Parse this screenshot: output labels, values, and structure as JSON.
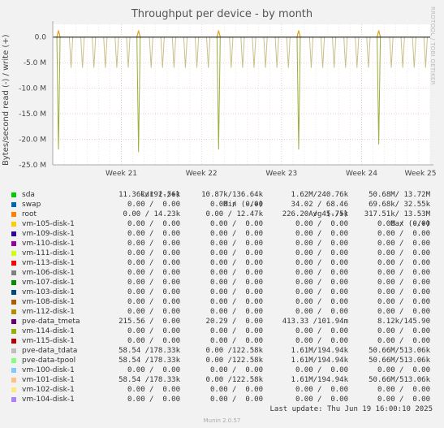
{
  "title": "Throughput per device - by month",
  "watermark": "RRDTOOL / TOBI OETIKER",
  "y_axis_label": "Bytes/second read (-) / write (+)",
  "legend_headers": {
    "cur": "Cur (-/+)",
    "min": "Min (-/+)",
    "avg": "Avg (-/+)",
    "max": "Max (-/+)"
  },
  "legend": [
    {
      "name": "sda",
      "color": "#00cc00",
      "cur": "11.36k/192.56k",
      "min": "10.87k/136.64k",
      "avg": "1.62M/240.76k",
      "max": "50.68M/ 13.72M"
    },
    {
      "name": "swap",
      "color": "#0066b3",
      "cur": "0.00 /  0.00",
      "min": "0.00 /  0.00",
      "avg": "34.02 / 68.46",
      "max": "69.68k/ 32.55k"
    },
    {
      "name": "root",
      "color": "#ff8000",
      "cur": "0.00 / 14.23k",
      "min": "0.00 / 12.47k",
      "avg": "226.20 / 45.75k",
      "max": "317.51k/ 13.53M"
    },
    {
      "name": "vm-105-disk-1",
      "color": "#ffcc00",
      "cur": "0.00 /  0.00",
      "min": "0.00 /  0.00",
      "avg": "0.00 /  0.00",
      "max": "0.00 /  0.00"
    },
    {
      "name": "vm-109-disk-1",
      "color": "#330099",
      "cur": "0.00 /  0.00",
      "min": "0.00 /  0.00",
      "avg": "0.00 /  0.00",
      "max": "0.00 /  0.00"
    },
    {
      "name": "vm-110-disk-1",
      "color": "#990099",
      "cur": "0.00 /  0.00",
      "min": "0.00 /  0.00",
      "avg": "0.00 /  0.00",
      "max": "0.00 /  0.00"
    },
    {
      "name": "vm-111-disk-1",
      "color": "#ccff00",
      "cur": "0.00 /  0.00",
      "min": "0.00 /  0.00",
      "avg": "0.00 /  0.00",
      "max": "0.00 /  0.00"
    },
    {
      "name": "vm-113-disk-1",
      "color": "#ff0000",
      "cur": "0.00 /  0.00",
      "min": "0.00 /  0.00",
      "avg": "0.00 /  0.00",
      "max": "0.00 /  0.00"
    },
    {
      "name": "vm-106-disk-1",
      "color": "#808080",
      "cur": "0.00 /  0.00",
      "min": "0.00 /  0.00",
      "avg": "0.00 /  0.00",
      "max": "0.00 /  0.00"
    },
    {
      "name": "vm-107-disk-1",
      "color": "#008f00",
      "cur": "0.00 /  0.00",
      "min": "0.00 /  0.00",
      "avg": "0.00 /  0.00",
      "max": "0.00 /  0.00"
    },
    {
      "name": "vm-103-disk-1",
      "color": "#00487d",
      "cur": "0.00 /  0.00",
      "min": "0.00 /  0.00",
      "avg": "0.00 /  0.00",
      "max": "0.00 /  0.00"
    },
    {
      "name": "vm-108-disk-1",
      "color": "#b35a00",
      "cur": "0.00 /  0.00",
      "min": "0.00 /  0.00",
      "avg": "0.00 /  0.00",
      "max": "0.00 /  0.00"
    },
    {
      "name": "vm-112-disk-1",
      "color": "#b38f00",
      "cur": "0.00 /  0.00",
      "min": "0.00 /  0.00",
      "avg": "0.00 /  0.00",
      "max": "0.00 /  0.00"
    },
    {
      "name": "pve-data_tmeta",
      "color": "#6b006b",
      "cur": "215.56 /  0.00",
      "min": "20.29 /  0.00",
      "avg": "413.33 /101.94m",
      "max": "8.12k/145.90"
    },
    {
      "name": "vm-114-disk-1",
      "color": "#8fb300",
      "cur": "0.00 /  0.00",
      "min": "0.00 /  0.00",
      "avg": "0.00 /  0.00",
      "max": "0.00 /  0.00"
    },
    {
      "name": "vm-115-disk-1",
      "color": "#b30000",
      "cur": "0.00 /  0.00",
      "min": "0.00 /  0.00",
      "avg": "0.00 /  0.00",
      "max": "0.00 /  0.00"
    },
    {
      "name": "pve-data_tdata",
      "color": "#bebebe",
      "cur": "58.54 /178.33k",
      "min": "0.00 /122.58k",
      "avg": "1.61M/194.94k",
      "max": "50.66M/513.06k"
    },
    {
      "name": "pve-data-tpool",
      "color": "#80ff80",
      "cur": "58.54 /178.33k",
      "min": "0.00 /122.58k",
      "avg": "1.61M/194.94k",
      "max": "50.66M/513.06k"
    },
    {
      "name": "vm-100-disk-1",
      "color": "#80c9ff",
      "cur": "0.00 /  0.00",
      "min": "0.00 /  0.00",
      "avg": "0.00 /  0.00",
      "max": "0.00 /  0.00"
    },
    {
      "name": "vm-101-disk-1",
      "color": "#ffc080",
      "cur": "58.54 /178.33k",
      "min": "0.00 /122.58k",
      "avg": "1.61M/194.94k",
      "max": "50.66M/513.06k"
    },
    {
      "name": "vm-102-disk-1",
      "color": "#ffe680",
      "cur": "0.00 /  0.00",
      "min": "0.00 /  0.00",
      "avg": "0.00 /  0.00",
      "max": "0.00 /  0.00"
    },
    {
      "name": "vm-104-disk-1",
      "color": "#aa80ff",
      "cur": "0.00 /  0.00",
      "min": "0.00 /  0.00",
      "avg": "0.00 /  0.00",
      "max": "0.00 /  0.00"
    }
  ],
  "last_update": "Last update: Thu Jun 19 16:00:10 2025",
  "version": "Munin 2.0.57",
  "chart_data": {
    "type": "line",
    "ylabel": "Bytes/second read (-) / write (+)",
    "ylim": [
      -25000000,
      2500000
    ],
    "y_ticks": [
      "0.0",
      "-5.0 M",
      "-10.0 M",
      "-15.0 M",
      "-20.0 M",
      "-25.0 M"
    ],
    "y_tick_values": [
      0,
      -5000000,
      -10000000,
      -15000000,
      -20000000,
      -25000000
    ],
    "x_ticks": [
      "Week 21",
      "Week 22",
      "Week 23",
      "Week 24",
      "Week 25"
    ],
    "x_range_days": [
      0,
      33
    ],
    "x_tick_days": [
      6,
      13,
      20,
      27,
      34
    ],
    "grid": true,
    "daily_read_dip": -6000000,
    "weekly_spikes": [
      {
        "day": 0.5,
        "read": -22000000,
        "write": 1300000
      },
      {
        "day": 7.5,
        "read": -22500000,
        "write": 1300000
      },
      {
        "day": 14.5,
        "read": -22000000,
        "write": 1300000
      },
      {
        "day": 21.5,
        "read": -22000000,
        "write": 1300000
      },
      {
        "day": 28.5,
        "read": -21000000,
        "write": 1300000
      }
    ],
    "series_colors": {
      "read": "#c8c08a",
      "read_spike": "#9aae3a",
      "write": "#e0a020"
    }
  }
}
